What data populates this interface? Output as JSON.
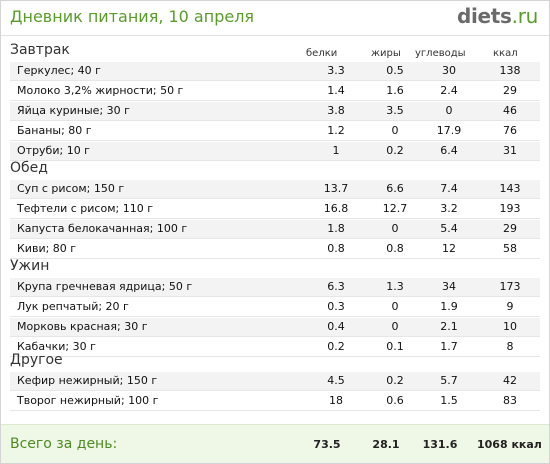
{
  "header": {
    "title": "Дневник питания, 10 апреля",
    "logo_main": "diets",
    "logo_suffix": ".ru"
  },
  "columns": {
    "protein": "белки",
    "fat": "жиры",
    "carbs": "углеводы",
    "kcal": "ккал"
  },
  "sections": [
    {
      "title": "Завтрак",
      "items": [
        {
          "name": "Геркулес; 40 г",
          "protein": "3.3",
          "fat": "0.5",
          "carbs": "30",
          "kcal": "138"
        },
        {
          "name": "Молоко 3,2% жирности; 50 г",
          "protein": "1.4",
          "fat": "1.6",
          "carbs": "2.4",
          "kcal": "29"
        },
        {
          "name": "Яйца куриные; 30 г",
          "protein": "3.8",
          "fat": "3.5",
          "carbs": "0",
          "kcal": "46"
        },
        {
          "name": "Бананы; 80 г",
          "protein": "1.2",
          "fat": "0",
          "carbs": "17.9",
          "kcal": "76"
        },
        {
          "name": "Отруби; 10 г",
          "protein": "1",
          "fat": "0.2",
          "carbs": "6.4",
          "kcal": "31"
        }
      ]
    },
    {
      "title": "Обед",
      "items": [
        {
          "name": "Суп с рисом; 150 г",
          "protein": "13.7",
          "fat": "6.6",
          "carbs": "7.4",
          "kcal": "143"
        },
        {
          "name": "Тефтели с рисом; 110 г",
          "protein": "16.8",
          "fat": "12.7",
          "carbs": "3.2",
          "kcal": "193"
        },
        {
          "name": "Капуста белокачанная; 100 г",
          "protein": "1.8",
          "fat": "0",
          "carbs": "5.4",
          "kcal": "29"
        },
        {
          "name": "Киви; 80 г",
          "protein": "0.8",
          "fat": "0.8",
          "carbs": "12",
          "kcal": "58"
        }
      ]
    },
    {
      "title": "Ужин",
      "items": [
        {
          "name": "Крупа гречневая ядрица; 50 г",
          "protein": "6.3",
          "fat": "1.3",
          "carbs": "34",
          "kcal": "173"
        },
        {
          "name": "Лук репчатый; 20 г",
          "protein": "0.3",
          "fat": "0",
          "carbs": "1.9",
          "kcal": "9"
        },
        {
          "name": "Морковь красная; 30 г",
          "protein": "0.4",
          "fat": "0",
          "carbs": "2.1",
          "kcal": "10"
        },
        {
          "name": "Кабачки; 30 г",
          "protein": "0.2",
          "fat": "0.1",
          "carbs": "1.7",
          "kcal": "8"
        }
      ]
    },
    {
      "title": "Другое",
      "items": [
        {
          "name": "Кефир нежирный; 150 г",
          "protein": "4.5",
          "fat": "0.2",
          "carbs": "5.7",
          "kcal": "42"
        },
        {
          "name": "Творог нежирный; 100 г",
          "protein": "18",
          "fat": "0.6",
          "carbs": "1.5",
          "kcal": "83"
        }
      ]
    }
  ],
  "totals": {
    "label": "Всего за день:",
    "protein": "73.5",
    "fat": "28.1",
    "carbs": "131.6",
    "kcal": "1068 ккал"
  },
  "colors": {
    "accent": "#5a9c2c",
    "footer_bg": "#eff8e6",
    "row_alt": "#f3f3f3"
  }
}
